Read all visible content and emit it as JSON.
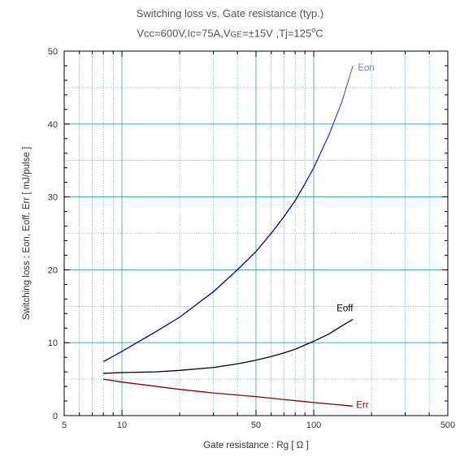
{
  "chart_data": {
    "type": "line",
    "title": "Switching loss  vs.  Gate resistance (typ.)",
    "subtitle": {
      "prefix": "Vcc=600V,Ic=75A,V",
      "sub": "GE",
      "mid": "=±15V ,Tj=125",
      "sup": "o",
      "suffix": "C"
    },
    "xlabel": "Gate resistance  :  Rg  [    Ω ]",
    "ylabel": "Switching loss  :  Eon, Eoff, Err  [ mJ/pulse ]",
    "x_scale": "log",
    "xlim": [
      5,
      500
    ],
    "ylim": [
      0,
      50
    ],
    "x_ticks": [
      5,
      10,
      50,
      100,
      500
    ],
    "x_tick_labels": [
      "5",
      "10",
      "50",
      "100",
      "500"
    ],
    "y_ticks": [
      0,
      10,
      20,
      30,
      40,
      50
    ],
    "y_tick_labels": [
      "0",
      "10",
      "20",
      "30",
      "40",
      "50"
    ],
    "grid": true,
    "series": [
      {
        "name": "Eon",
        "color": "#00008b",
        "color_end": "#7b7bd6",
        "x": [
          8,
          10,
          15,
          20,
          30,
          40,
          50,
          60,
          70,
          80,
          90,
          100,
          120,
          140,
          160
        ],
        "y": [
          7.4,
          8.8,
          11.5,
          13.5,
          17.0,
          20.0,
          22.5,
          25.0,
          27.3,
          29.5,
          31.8,
          34.0,
          38.5,
          43.0,
          48.0
        ]
      },
      {
        "name": "Eoff",
        "color": "#000000",
        "x": [
          8,
          10,
          15,
          20,
          30,
          40,
          50,
          60,
          70,
          80,
          100,
          120,
          140,
          160
        ],
        "y": [
          5.8,
          5.9,
          6.0,
          6.2,
          6.6,
          7.1,
          7.6,
          8.1,
          8.6,
          9.1,
          10.2,
          11.2,
          12.3,
          13.2
        ]
      },
      {
        "name": "Err",
        "color": "#8b0000",
        "x": [
          8,
          10,
          20,
          30,
          50,
          70,
          100,
          160
        ],
        "y": [
          5.0,
          4.6,
          3.6,
          3.1,
          2.6,
          2.2,
          1.8,
          1.3
        ]
      }
    ]
  }
}
